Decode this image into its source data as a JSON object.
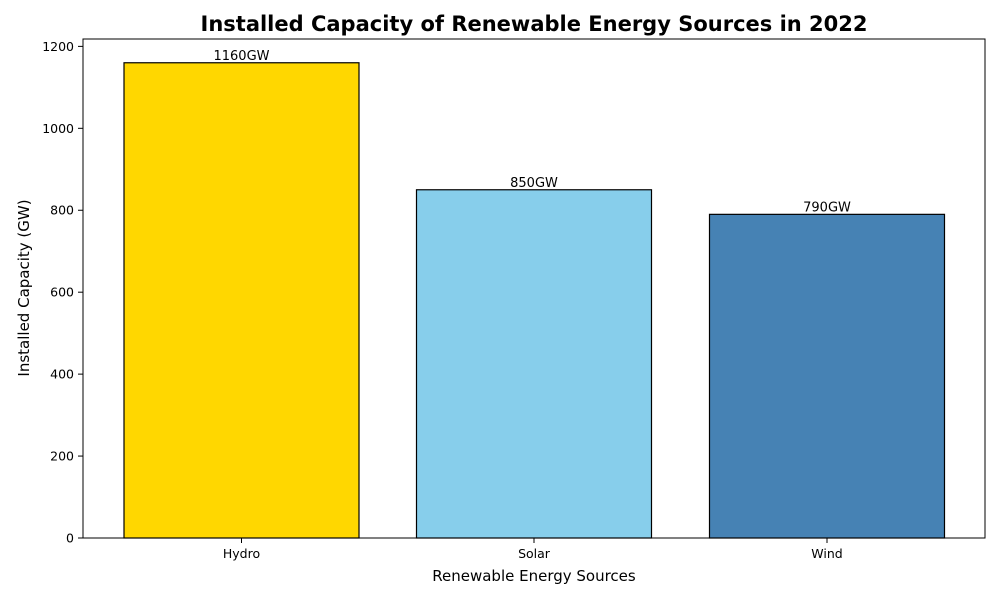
{
  "chart_data": {
    "type": "bar",
    "title": "Installed Capacity of Renewable Energy Sources in 2022",
    "xlabel": "Renewable Energy Sources",
    "ylabel": "Installed Capacity (GW)",
    "categories": [
      "Hydro",
      "Solar",
      "Wind"
    ],
    "values": [
      1160,
      850,
      790
    ],
    "data_labels": [
      "1160GW",
      "850GW",
      "790GW"
    ],
    "colors": [
      "#FFD700",
      "#87CEEB",
      "#4682B4"
    ],
    "edge_color": "#000000",
    "ylim": [
      0,
      1218
    ],
    "yticks": [
      0,
      200,
      400,
      600,
      800,
      1000,
      1200
    ],
    "grid": false,
    "legend": "none"
  }
}
